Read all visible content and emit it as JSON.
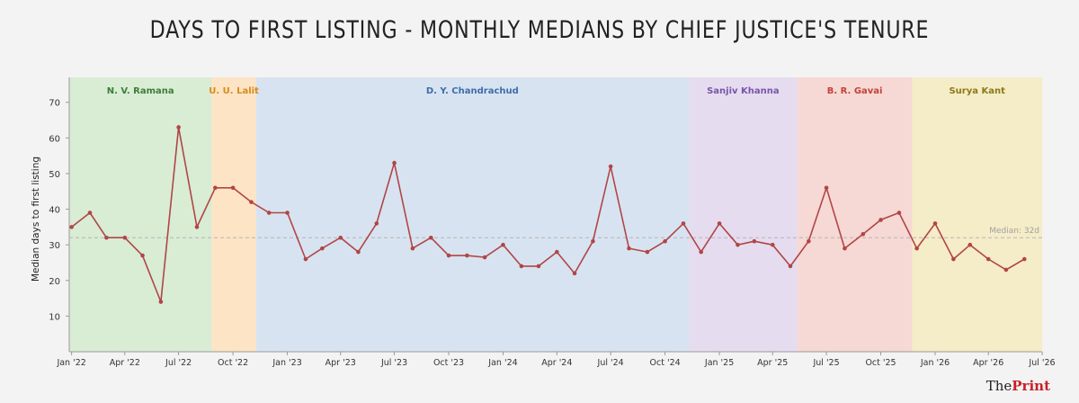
{
  "title": "DAYS TO FIRST LISTING - MONTHLY MEDIANS BY CHIEF JUSTICE'S TENURE",
  "brand": {
    "prefix": "The",
    "name": "Print"
  },
  "chart_data": {
    "type": "line",
    "ylabel": "Median days to first listing",
    "xlabel": "",
    "ylim": [
      0,
      77
    ],
    "yticks": [
      10,
      20,
      30,
      40,
      50,
      60,
      70
    ],
    "grid": false,
    "xlim": [
      "2021-12-28",
      "2026-07-01"
    ],
    "xticks": [
      {
        "date": "2022-01-01",
        "label": "Jan '22"
      },
      {
        "date": "2022-04-01",
        "label": "Apr '22"
      },
      {
        "date": "2022-07-01",
        "label": "Jul '22"
      },
      {
        "date": "2022-10-01",
        "label": "Oct '22"
      },
      {
        "date": "2023-01-01",
        "label": "Jan '23"
      },
      {
        "date": "2023-04-01",
        "label": "Apr '23"
      },
      {
        "date": "2023-07-01",
        "label": "Jul '23"
      },
      {
        "date": "2023-10-01",
        "label": "Oct '23"
      },
      {
        "date": "2024-01-01",
        "label": "Jan '24"
      },
      {
        "date": "2024-04-01",
        "label": "Apr '24"
      },
      {
        "date": "2024-07-01",
        "label": "Jul '24"
      },
      {
        "date": "2024-10-01",
        "label": "Oct '24"
      },
      {
        "date": "2025-01-01",
        "label": "Jan '25"
      },
      {
        "date": "2025-04-01",
        "label": "Apr '25"
      },
      {
        "date": "2025-07-01",
        "label": "Jul '25"
      },
      {
        "date": "2025-10-01",
        "label": "Oct '25"
      },
      {
        "date": "2026-01-01",
        "label": "Jan '26"
      },
      {
        "date": "2026-04-01",
        "label": "Apr '26"
      },
      {
        "date": "2026-07-01",
        "label": "Jul '26"
      }
    ],
    "tenures": [
      {
        "name": "N. V. Ramana",
        "start": "2021-12-28",
        "end": "2022-08-26",
        "fill": "#d9ecd4",
        "label_color": "#3e7d3a"
      },
      {
        "name": "U. U. Lalit",
        "start": "2022-08-26",
        "end": "2022-11-09",
        "fill": "#fce4c4",
        "label_color": "#d98a1c"
      },
      {
        "name": "D. Y. Chandrachud",
        "start": "2022-11-09",
        "end": "2024-11-10",
        "fill": "#d8e3f1",
        "label_color": "#3d6ea8"
      },
      {
        "name": "Sanjiv Khanna",
        "start": "2024-11-10",
        "end": "2025-05-13",
        "fill": "#e5dcf0",
        "label_color": "#7a55a8"
      },
      {
        "name": "B. R. Gavai",
        "start": "2025-05-13",
        "end": "2025-11-23",
        "fill": "#f6d8d4",
        "label_color": "#c4423a"
      },
      {
        "name": "Surya Kant",
        "start": "2025-11-23",
        "end": "2026-07-01",
        "fill": "#f5ecc8",
        "label_color": "#8c7a1a"
      }
    ],
    "reference_line": {
      "value": 32,
      "label": "Median: 32d"
    },
    "series": [
      {
        "color": "#b04646",
        "x": [
          "2022-01-01",
          "2022-02-01",
          "2022-03-01",
          "2022-04-01",
          "2022-05-01",
          "2022-06-01",
          "2022-07-01",
          "2022-08-01",
          "2022-09-01",
          "2022-10-01",
          "2022-11-01",
          "2022-12-01",
          "2023-01-01",
          "2023-02-01",
          "2023-03-01",
          "2023-04-01",
          "2023-05-01",
          "2023-06-01",
          "2023-07-01",
          "2023-08-01",
          "2023-09-01",
          "2023-10-01",
          "2023-11-01",
          "2023-12-01",
          "2024-01-01",
          "2024-02-01",
          "2024-03-01",
          "2024-04-01",
          "2024-05-01",
          "2024-06-01",
          "2024-07-01",
          "2024-08-01",
          "2024-09-01",
          "2024-10-01",
          "2024-11-01",
          "2024-12-01",
          "2025-01-01",
          "2025-02-01",
          "2025-03-01",
          "2025-04-01",
          "2025-05-01",
          "2025-06-01",
          "2025-07-01",
          "2025-08-01",
          "2025-09-01",
          "2025-10-01",
          "2025-11-01",
          "2025-12-01",
          "2026-01-01",
          "2026-02-01",
          "2026-03-01",
          "2026-04-01",
          "2026-05-01",
          "2026-06-01"
        ],
        "y": [
          35,
          39,
          32,
          32,
          27,
          14,
          63,
          35,
          46,
          46,
          42,
          39,
          39,
          26,
          29,
          32,
          28,
          36,
          53,
          29,
          32,
          27,
          27,
          26.5,
          30,
          24,
          24,
          28,
          22,
          31,
          52,
          29,
          28,
          31,
          36,
          28,
          36,
          30,
          31,
          30,
          24,
          31,
          46,
          29,
          33,
          37,
          39,
          29,
          36,
          26,
          30,
          26,
          23,
          26
        ]
      }
    ]
  }
}
